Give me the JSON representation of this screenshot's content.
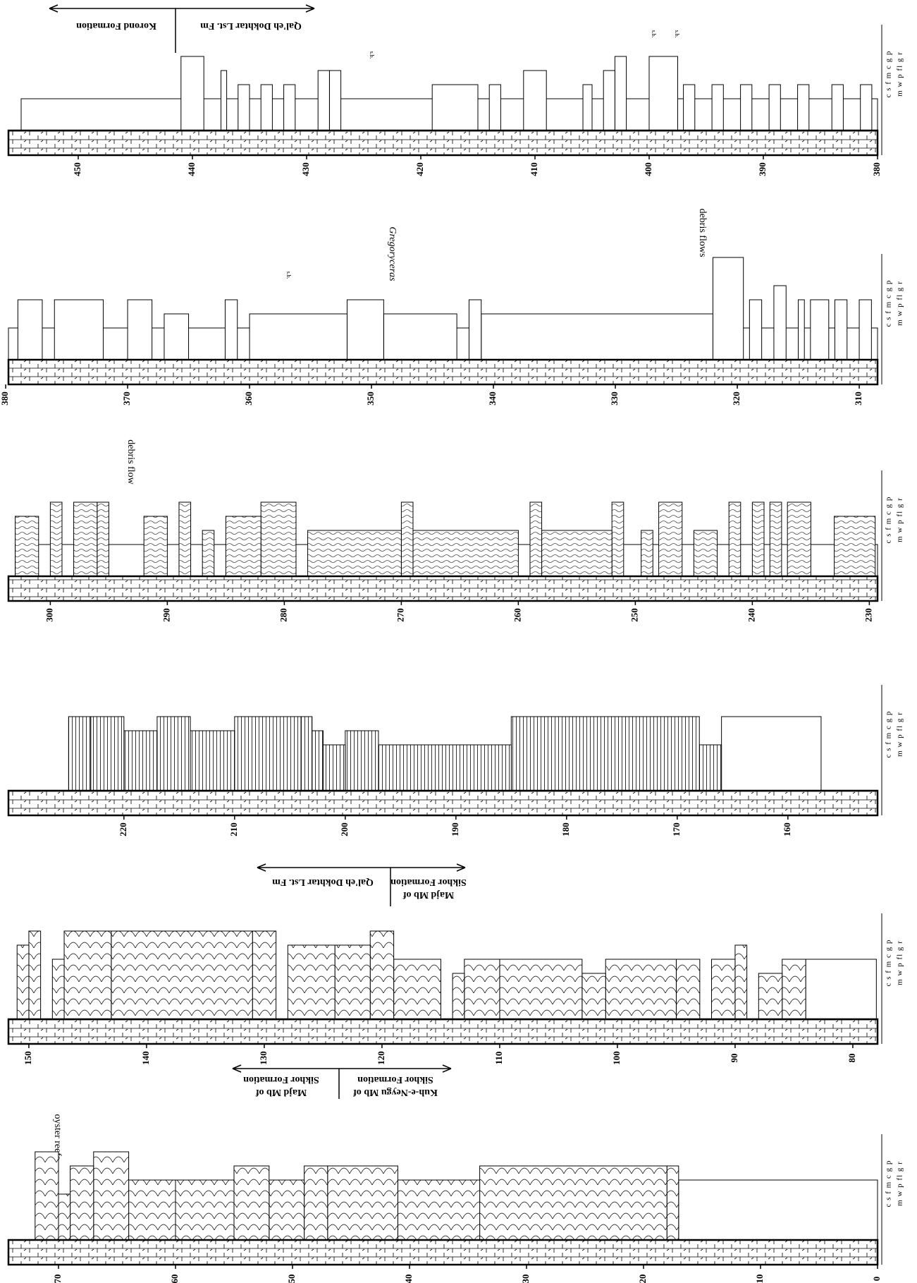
{
  "columns": [
    {
      "ticks": [
        380,
        390,
        400,
        410,
        420,
        430,
        440,
        450
      ],
      "beds": [
        [
          380,
          455,
          1
        ],
        [
          380.5,
          381.5,
          2
        ],
        [
          383,
          384,
          2
        ],
        [
          386,
          387,
          2
        ],
        [
          388.5,
          389.5,
          2
        ],
        [
          391,
          392,
          2
        ],
        [
          393.5,
          394.5,
          2
        ],
        [
          396,
          397,
          2
        ],
        [
          397.5,
          400,
          4
        ],
        [
          402,
          403,
          4
        ],
        [
          403,
          404,
          3
        ],
        [
          405,
          405.8,
          2
        ],
        [
          409,
          411,
          3
        ],
        [
          413,
          414,
          2
        ],
        [
          415,
          419,
          2
        ],
        [
          427,
          428,
          3
        ],
        [
          428,
          429,
          3
        ],
        [
          431,
          432,
          2
        ],
        [
          433,
          434,
          2
        ],
        [
          435,
          436,
          2
        ],
        [
          437,
          437.5,
          3
        ],
        [
          439,
          441,
          4
        ]
      ]
    },
    {
      "ticks": [
        310,
        320,
        330,
        340,
        350,
        360,
        370,
        380
      ],
      "beds": [
        [
          308.5,
          380,
          1
        ],
        [
          309,
          310,
          3
        ],
        [
          311,
          312,
          3
        ],
        [
          312.5,
          314,
          3
        ],
        [
          314.5,
          315,
          3
        ],
        [
          316,
          317,
          4
        ],
        [
          318,
          319,
          3
        ],
        [
          319.5,
          322,
          6
        ],
        [
          322,
          341,
          2
        ],
        [
          341,
          342,
          3
        ],
        [
          343,
          349,
          2
        ],
        [
          349,
          352,
          3
        ],
        [
          352,
          360,
          2
        ],
        [
          361,
          362,
          3
        ],
        [
          365,
          367,
          2
        ],
        [
          368,
          370,
          3
        ],
        [
          372,
          376,
          3
        ],
        [
          377,
          379,
          3
        ]
      ]
    },
    {
      "ticks": [
        230,
        240,
        250,
        260,
        270,
        280,
        290,
        300
      ],
      "beds": [
        [
          229.3,
          303,
          1
        ],
        [
          229.5,
          233,
          3
        ],
        [
          235,
          237,
          4
        ],
        [
          237.5,
          238.5,
          4
        ],
        [
          239,
          240,
          4
        ],
        [
          241,
          242,
          4
        ],
        [
          243,
          245,
          2
        ],
        [
          246,
          248,
          4
        ],
        [
          248.5,
          249.5,
          2
        ],
        [
          251,
          252,
          4
        ],
        [
          252,
          258,
          2
        ],
        [
          258,
          259,
          4
        ],
        [
          260,
          269,
          2
        ],
        [
          269,
          270,
          4
        ],
        [
          270,
          278,
          2
        ],
        [
          279,
          282,
          4
        ],
        [
          282,
          285,
          3
        ],
        [
          286,
          287,
          2
        ],
        [
          288,
          289,
          4
        ],
        [
          290,
          292,
          3
        ],
        [
          295,
          296,
          4
        ],
        [
          296,
          298,
          4
        ],
        [
          299,
          300,
          4
        ],
        [
          301,
          303,
          3
        ]
      ]
    },
    {
      "ticks": [
        160,
        170,
        180,
        190,
        200,
        210,
        220
      ],
      "beds": [
        [
          157,
          166,
          4
        ],
        [
          166,
          168,
          2
        ],
        [
          168,
          185,
          4
        ],
        [
          185,
          197,
          2
        ],
        [
          197,
          200,
          3
        ],
        [
          200,
          202,
          2
        ],
        [
          202,
          203,
          3
        ],
        [
          203,
          204,
          4
        ],
        [
          204,
          210,
          4
        ],
        [
          210,
          214,
          3
        ],
        [
          214,
          217,
          4
        ],
        [
          217,
          220,
          3
        ],
        [
          220,
          223,
          4
        ],
        [
          223,
          225,
          4
        ]
      ]
    },
    {
      "ticks": [
        80,
        90,
        100,
        110,
        120,
        130,
        140,
        150
      ],
      "beds": [
        [
          78,
          84,
          3
        ],
        [
          84,
          86,
          3
        ],
        [
          86,
          88,
          2
        ],
        [
          89,
          90,
          4
        ],
        [
          90,
          92,
          3
        ],
        [
          93,
          95,
          3
        ],
        [
          95,
          101,
          3
        ],
        [
          101,
          103,
          2
        ],
        [
          103,
          110,
          3
        ],
        [
          110,
          113,
          3
        ],
        [
          113,
          114,
          2
        ],
        [
          115,
          119,
          3
        ],
        [
          119,
          121,
          5
        ],
        [
          121,
          124,
          4
        ],
        [
          124,
          128,
          4
        ],
        [
          129,
          131,
          5
        ],
        [
          131,
          143,
          5
        ],
        [
          143,
          147,
          5
        ],
        [
          147,
          148,
          3
        ],
        [
          149,
          150,
          5
        ],
        [
          150,
          151,
          4
        ]
      ]
    },
    {
      "ticks": [
        0,
        10,
        20,
        30,
        40,
        50,
        60,
        70
      ],
      "beds": [
        [
          0,
          17,
          3
        ],
        [
          17,
          18,
          4
        ],
        [
          18,
          34,
          4
        ],
        [
          34,
          41,
          3
        ],
        [
          41,
          47,
          4
        ],
        [
          47,
          49,
          4
        ],
        [
          49,
          52,
          3
        ],
        [
          52,
          55,
          4
        ],
        [
          55,
          60,
          3
        ],
        [
          60,
          64,
          3
        ],
        [
          64,
          67,
          5
        ],
        [
          67,
          69,
          4
        ],
        [
          69,
          70,
          2
        ],
        [
          70,
          72,
          5
        ]
      ]
    }
  ],
  "grain_scale": [
    "c s f m c g p",
    "m w p fl g r"
  ],
  "labels": {
    "korond": "Korond Formation",
    "qaleh": "Qal'eh Dokhtar Lst. Fm",
    "gregoryceras": "Gregoryceras",
    "debris_flows": "debris flows",
    "debris_flow": "debris flow",
    "majd": "Majd Mb of",
    "sikhor": "Sikhor Formation",
    "kuh": "Kuh-e-Neygu Mb of",
    "oyster": "oyster reefs",
    "sb": "s.b."
  }
}
